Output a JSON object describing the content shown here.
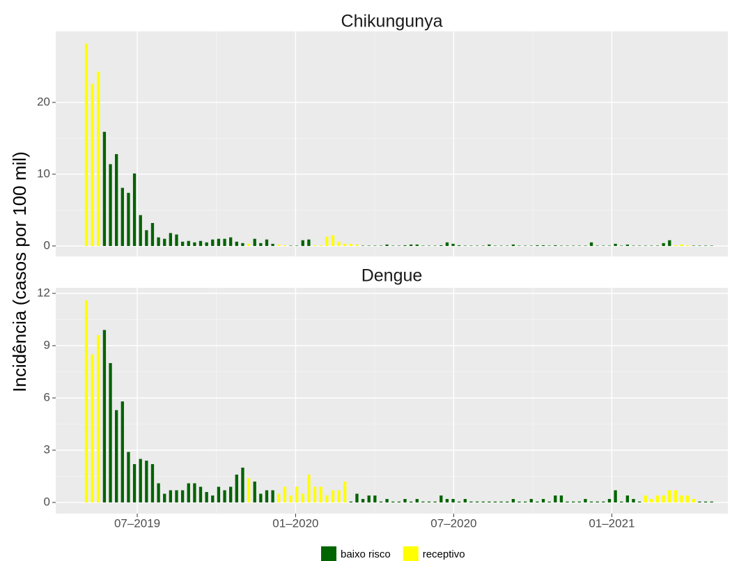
{
  "chart_data": [
    {
      "type": "bar",
      "title": "Chikungunya",
      "y_label": "Incidência (casos por 100 mil)",
      "x": [
        0,
        1,
        2,
        3,
        4,
        5,
        6,
        7,
        8,
        9,
        10,
        11,
        12,
        13,
        14,
        15,
        16,
        17,
        18,
        19,
        20,
        21,
        22,
        23,
        24,
        25,
        26,
        27,
        28,
        29,
        30,
        31,
        32,
        33,
        34,
        35,
        36,
        37,
        38,
        39,
        40,
        41,
        42,
        43,
        44,
        45,
        46,
        47,
        48,
        49,
        50,
        51,
        52,
        53,
        54,
        55,
        56,
        57,
        58,
        59,
        60,
        61,
        62,
        63,
        64,
        65,
        66,
        67,
        68,
        69,
        70,
        71,
        72,
        73,
        74,
        75,
        76,
        77,
        78,
        79,
        80,
        81,
        82,
        83,
        84,
        85,
        86,
        87,
        88,
        89,
        90,
        91,
        92,
        93,
        94,
        95,
        96,
        97,
        98,
        99,
        100,
        101,
        102,
        103,
        104
      ],
      "series": [
        {
          "name": "baixo risco",
          "color": "#006400",
          "values": [
            null,
            null,
            null,
            15.9,
            11.4,
            12.8,
            8.1,
            7.4,
            10.1,
            4.3,
            2.2,
            3.2,
            1.2,
            1.0,
            1.8,
            1.6,
            0.6,
            0.7,
            0.5,
            0.7,
            0.5,
            0.9,
            1.0,
            1.0,
            1.2,
            0.6,
            0.4,
            null,
            1.0,
            0.4,
            0.9,
            0.3,
            null,
            null,
            0.05,
            0.05,
            0.8,
            0.9,
            null,
            null,
            null,
            null,
            null,
            null,
            null,
            null,
            0.05,
            0.05,
            0.05,
            0.05,
            0.2,
            0.05,
            0.05,
            0.1,
            0.2,
            0.2,
            0.05,
            0.05,
            0.05,
            0.1,
            0.5,
            0.3,
            0.1,
            0.05,
            0.05,
            0.05,
            0.05,
            0.2,
            0.05,
            0.05,
            0.05,
            0.2,
            0.05,
            0.05,
            0.05,
            0.1,
            0.1,
            0.05,
            0.1,
            0.05,
            0.05,
            0.05,
            0.05,
            0.05,
            0.5,
            0.05,
            0.05,
            0.05,
            0.3,
            0.05,
            0.2,
            0.05,
            0.05,
            0.05,
            0.05,
            0.05,
            0.4,
            0.8,
            null,
            null,
            null,
            0.05,
            0.05,
            0.05,
            0.05
          ]
        },
        {
          "name": "receptivo",
          "color": "#ffff00",
          "values": [
            28.2,
            22.6,
            24.3,
            null,
            null,
            null,
            null,
            null,
            null,
            null,
            null,
            null,
            null,
            null,
            null,
            null,
            null,
            null,
            null,
            null,
            null,
            null,
            null,
            null,
            null,
            null,
            null,
            0.3,
            null,
            null,
            null,
            null,
            0.2,
            0.1,
            null,
            null,
            null,
            null,
            0.1,
            0.1,
            1.3,
            1.5,
            0.6,
            0.3,
            0.3,
            0.2,
            null,
            null,
            null,
            null,
            null,
            null,
            null,
            null,
            null,
            null,
            null,
            null,
            null,
            null,
            null,
            null,
            null,
            null,
            null,
            null,
            null,
            null,
            null,
            null,
            null,
            null,
            null,
            null,
            null,
            null,
            null,
            null,
            null,
            null,
            null,
            null,
            null,
            null,
            null,
            null,
            null,
            null,
            null,
            null,
            null,
            null,
            null,
            null,
            null,
            null,
            null,
            null,
            0.1,
            0.2,
            0.1,
            null,
            null,
            null,
            null
          ]
        }
      ],
      "xlim": [
        -5.1,
        106.7
      ],
      "ylim": [
        -1.46,
        29.9
      ],
      "yticks": [
        0,
        10,
        20
      ],
      "grid": true
    },
    {
      "type": "bar",
      "title": "Dengue",
      "x": [
        0,
        1,
        2,
        3,
        4,
        5,
        6,
        7,
        8,
        9,
        10,
        11,
        12,
        13,
        14,
        15,
        16,
        17,
        18,
        19,
        20,
        21,
        22,
        23,
        24,
        25,
        26,
        27,
        28,
        29,
        30,
        31,
        32,
        33,
        34,
        35,
        36,
        37,
        38,
        39,
        40,
        41,
        42,
        43,
        44,
        45,
        46,
        47,
        48,
        49,
        50,
        51,
        52,
        53,
        54,
        55,
        56,
        57,
        58,
        59,
        60,
        61,
        62,
        63,
        64,
        65,
        66,
        67,
        68,
        69,
        70,
        71,
        72,
        73,
        74,
        75,
        76,
        77,
        78,
        79,
        80,
        81,
        82,
        83,
        84,
        85,
        86,
        87,
        88,
        89,
        90,
        91,
        92,
        93,
        94,
        95,
        96,
        97,
        98,
        99,
        100,
        101,
        102,
        103,
        104
      ],
      "series": [
        {
          "name": "baixo risco",
          "color": "#006400",
          "values": [
            null,
            null,
            null,
            9.9,
            8.0,
            5.3,
            5.8,
            2.9,
            2.2,
            2.5,
            2.4,
            2.2,
            1.1,
            0.5,
            0.7,
            0.7,
            0.7,
            1.1,
            1.1,
            0.9,
            0.6,
            0.4,
            0.9,
            0.7,
            0.9,
            1.6,
            2.0,
            null,
            1.2,
            0.5,
            0.7,
            0.7,
            null,
            null,
            null,
            null,
            null,
            null,
            null,
            null,
            null,
            null,
            null,
            null,
            0.05,
            0.5,
            0.2,
            0.4,
            0.4,
            0.05,
            0.2,
            0.05,
            0.05,
            0.2,
            0.05,
            0.2,
            0.05,
            0.05,
            0.05,
            0.4,
            0.2,
            0.2,
            0.05,
            0.2,
            0.05,
            0.05,
            0.05,
            0.05,
            0.05,
            0.05,
            0.05,
            0.2,
            0.05,
            0.05,
            0.2,
            0.05,
            0.2,
            0.05,
            0.4,
            0.4,
            0.05,
            0.05,
            0.05,
            0.2,
            0.05,
            0.05,
            0.05,
            0.2,
            0.7,
            0.05,
            0.4,
            0.2,
            0.05,
            null,
            null,
            null,
            null,
            null,
            null,
            null,
            null,
            null,
            0.05,
            0.05,
            0.05
          ]
        },
        {
          "name": "receptivo",
          "color": "#ffff00",
          "values": [
            11.6,
            8.5,
            9.6,
            null,
            null,
            null,
            null,
            null,
            null,
            null,
            null,
            null,
            null,
            null,
            null,
            null,
            null,
            null,
            null,
            null,
            null,
            null,
            null,
            null,
            null,
            null,
            null,
            1.4,
            null,
            null,
            null,
            null,
            0.5,
            0.9,
            0.4,
            0.9,
            0.5,
            1.6,
            0.9,
            0.9,
            0.4,
            0.7,
            0.7,
            1.2,
            null,
            null,
            null,
            null,
            null,
            null,
            null,
            null,
            null,
            null,
            null,
            null,
            null,
            null,
            null,
            null,
            null,
            null,
            null,
            null,
            null,
            null,
            null,
            null,
            null,
            null,
            null,
            null,
            null,
            null,
            null,
            null,
            null,
            null,
            null,
            null,
            null,
            null,
            null,
            null,
            null,
            null,
            null,
            null,
            null,
            null,
            null,
            null,
            null,
            0.4,
            0.2,
            0.4,
            0.4,
            0.7,
            0.7,
            0.4,
            0.4,
            0.2,
            null,
            null,
            null
          ]
        }
      ],
      "xlim": [
        -5.1,
        106.7
      ],
      "ylim": [
        -0.64,
        12.32
      ],
      "yticks": [
        0,
        3,
        6,
        9,
        12
      ],
      "xticks": [
        {
          "value": 8.46,
          "label": "07–2019"
        },
        {
          "value": 34.8,
          "label": "01–2020"
        },
        {
          "value": 61.1,
          "label": "07–2020"
        },
        {
          "value": 87.4,
          "label": "01–2021"
        }
      ],
      "grid": true
    }
  ]
}
